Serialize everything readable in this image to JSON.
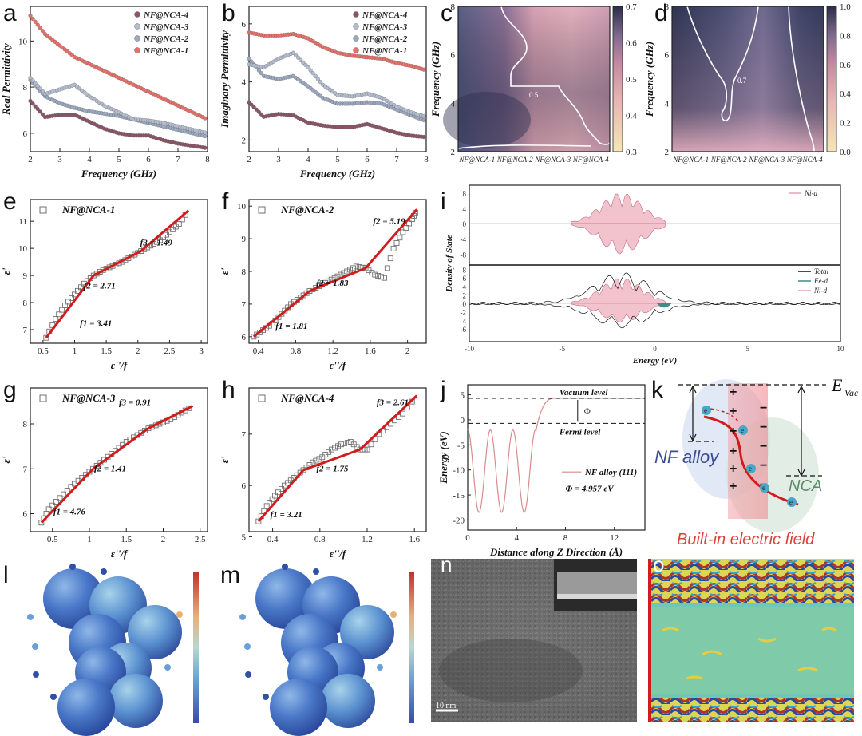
{
  "panel_labels": {
    "a": "a",
    "b": "b",
    "c": "c",
    "d": "d",
    "e": "e",
    "f": "f",
    "g": "g",
    "h": "h",
    "i": "i",
    "j": "j",
    "k": "k",
    "l": "l",
    "m": "m",
    "n": "n",
    "o": "o"
  },
  "colors": {
    "nca1": "#e8706a",
    "nca2": "#9aa8c0",
    "nca3": "#b3bccf",
    "nca4": "#8a5565",
    "fit": "#d01c1c",
    "square": "#707070",
    "cbar_top": "#2c2f4a",
    "cbar_bottom": "#f3e3b5"
  },
  "chart_data": [
    {
      "id": "a",
      "type": "scatter",
      "title": "",
      "xlabel": "Frequency (GHz)",
      "ylabel": "Real Permittivity",
      "xlim": [
        2,
        8
      ],
      "ylim": [
        5.2,
        11.5
      ],
      "xticks": [
        2,
        3,
        4,
        5,
        6,
        7,
        8
      ],
      "yticks": [
        6,
        8,
        10
      ],
      "series": [
        {
          "name": "NF@NCA-1",
          "x": [
            2,
            2.5,
            3,
            3.5,
            4,
            4.5,
            5,
            5.5,
            6,
            6.5,
            7,
            7.5,
            8
          ],
          "y": [
            11.1,
            10.3,
            9.8,
            9.3,
            9.0,
            8.7,
            8.4,
            8.1,
            7.8,
            7.5,
            7.2,
            6.9,
            6.6
          ]
        },
        {
          "name": "NF@NCA-2",
          "x": [
            2,
            2.5,
            3,
            3.5,
            4,
            4.5,
            5,
            5.5,
            6,
            6.5,
            7,
            7.5,
            8
          ],
          "y": [
            8.3,
            7.6,
            7.3,
            7.1,
            6.95,
            6.85,
            6.75,
            6.6,
            6.45,
            6.3,
            6.15,
            6.0,
            5.85
          ]
        },
        {
          "name": "NF@NCA-3",
          "x": [
            2,
            2.5,
            3,
            3.5,
            4,
            4.5,
            5,
            5.5,
            6,
            6.5,
            7,
            7.5,
            8
          ],
          "y": [
            8.4,
            7.7,
            7.9,
            8.1,
            7.6,
            7.2,
            6.9,
            6.6,
            6.55,
            6.45,
            6.3,
            6.15,
            6.0
          ]
        },
        {
          "name": "NF@NCA-4",
          "x": [
            2,
            2.5,
            3,
            3.5,
            4,
            4.5,
            5,
            5.5,
            6,
            6.5,
            7,
            7.5,
            8
          ],
          "y": [
            7.4,
            6.7,
            6.8,
            6.8,
            6.5,
            6.2,
            6.0,
            5.9,
            5.9,
            5.7,
            5.55,
            5.45,
            5.35
          ]
        }
      ]
    },
    {
      "id": "b",
      "type": "scatter",
      "title": "",
      "xlabel": "Frequency (GHz)",
      "ylabel": "Imaginary Permittivity",
      "xlim": [
        2,
        8
      ],
      "ylim": [
        1.6,
        6.6
      ],
      "xticks": [
        2,
        3,
        4,
        5,
        6,
        7,
        8
      ],
      "yticks": [
        2,
        4,
        6
      ],
      "series": [
        {
          "name": "NF@NCA-1",
          "x": [
            2,
            2.5,
            3,
            3.5,
            4,
            4.5,
            5,
            5.5,
            6,
            6.5,
            7,
            7.5,
            8
          ],
          "y": [
            5.7,
            5.6,
            5.6,
            5.65,
            5.5,
            5.2,
            5.0,
            4.9,
            4.85,
            4.8,
            4.65,
            4.55,
            4.4
          ]
        },
        {
          "name": "NF@NCA-2",
          "x": [
            2,
            2.5,
            3,
            3.5,
            4,
            4.5,
            5,
            5.5,
            6,
            6.5,
            7,
            7.5,
            8
          ],
          "y": [
            4.8,
            4.2,
            4.1,
            4.2,
            3.85,
            3.45,
            3.25,
            3.25,
            3.3,
            3.25,
            3.05,
            2.85,
            2.65
          ]
        },
        {
          "name": "NF@NCA-3",
          "x": [
            2,
            2.5,
            3,
            3.5,
            4,
            4.5,
            5,
            5.5,
            6,
            6.5,
            7,
            7.5,
            8
          ],
          "y": [
            4.6,
            4.5,
            4.8,
            5.0,
            4.5,
            3.9,
            3.55,
            3.5,
            3.6,
            3.45,
            3.15,
            2.95,
            2.8
          ]
        },
        {
          "name": "NF@NCA-4",
          "x": [
            2,
            2.5,
            3,
            3.5,
            4,
            4.5,
            5,
            5.5,
            6,
            6.5,
            7,
            7.5,
            8
          ],
          "y": [
            3.3,
            2.8,
            2.9,
            2.85,
            2.6,
            2.5,
            2.45,
            2.45,
            2.55,
            2.4,
            2.25,
            2.15,
            2.1
          ]
        }
      ]
    },
    {
      "id": "c",
      "type": "heatmap",
      "xlabel": "",
      "ylabel": "Frequency (GHz)",
      "categories": [
        "NF@NCA-1",
        "NF@NCA-2",
        "NF@NCA-3",
        "NF@NCA-4"
      ],
      "ylim": [
        2,
        8
      ],
      "yticks": [
        2,
        4,
        6,
        8
      ],
      "colorbar": {
        "min": 0.3,
        "max": 0.7,
        "ticks": [
          0.3,
          0.4,
          0.5,
          0.6,
          0.7
        ]
      },
      "contour_label": "0.5"
    },
    {
      "id": "d",
      "type": "heatmap",
      "xlabel": "",
      "ylabel": "Frequency (GHz)",
      "categories": [
        "NF@NCA-1",
        "NF@NCA-2",
        "NF@NCA-3",
        "NF@NCA-4"
      ],
      "ylim": [
        2,
        8
      ],
      "yticks": [
        2,
        4,
        6,
        8
      ],
      "colorbar": {
        "min": 0.0,
        "max": 1.0,
        "ticks": [
          0.0,
          0.2,
          0.4,
          0.6,
          0.8,
          1.0
        ]
      },
      "contour_label": "0.7"
    },
    {
      "id": "e",
      "type": "scatter",
      "title": "NF@NCA-1",
      "xlabel": "ε''/f",
      "ylabel": "ε'",
      "xlim": [
        0.3,
        3.1
      ],
      "ylim": [
        6.5,
        11.8
      ],
      "xticks": [
        0.5,
        1.0,
        1.5,
        2.0,
        2.5,
        3.0
      ],
      "yticks": [
        7,
        8,
        9,
        10,
        11
      ],
      "fits": [
        "f1 = 3.41",
        "f2 = 2.71",
        "f3 = 1.49"
      ],
      "x": [
        0.55,
        0.7,
        0.85,
        1.0,
        1.15,
        1.3,
        1.45,
        1.6,
        1.75,
        1.9,
        2.05,
        2.2,
        2.35,
        2.5,
        2.65,
        2.8
      ],
      "y": [
        6.7,
        7.4,
        7.9,
        8.3,
        8.7,
        9.0,
        9.2,
        9.35,
        9.5,
        9.7,
        9.9,
        10.1,
        10.3,
        10.6,
        10.9,
        11.4
      ]
    },
    {
      "id": "f",
      "type": "scatter",
      "title": "NF@NCA-2",
      "xlabel": "ε''/f",
      "ylabel": "ε'",
      "xlim": [
        0.3,
        2.2
      ],
      "ylim": [
        5.8,
        10.2
      ],
      "xticks": [
        0.4,
        0.8,
        1.2,
        1.6,
        2.0
      ],
      "yticks": [
        6,
        7,
        8,
        9,
        10
      ],
      "fits": [
        "f1 = 1.81",
        "f2 = 1.83",
        "f2 = 5.19"
      ],
      "x": [
        0.35,
        0.45,
        0.55,
        0.65,
        0.75,
        0.85,
        0.95,
        1.05,
        1.15,
        1.25,
        1.35,
        1.45,
        1.55,
        1.65,
        1.75,
        1.85,
        1.95,
        2.05,
        2.1
      ],
      "y": [
        6.0,
        6.2,
        6.4,
        6.7,
        7.0,
        7.2,
        7.4,
        7.55,
        7.7,
        7.85,
        8.0,
        8.15,
        8.1,
        7.9,
        7.8,
        8.7,
        9.2,
        9.6,
        9.9
      ]
    },
    {
      "id": "g",
      "type": "scatter",
      "title": "NF@NCA-3",
      "xlabel": "ε''/f",
      "ylabel": "ε'",
      "xlim": [
        0.2,
        2.6
      ],
      "ylim": [
        5.6,
        8.8
      ],
      "xticks": [
        0.5,
        1.0,
        1.5,
        2.0,
        2.5
      ],
      "yticks": [
        6,
        7,
        8
      ],
      "fits": [
        "f1 = 4.76",
        "f2 = 1.41",
        "f3 = 0.91"
      ],
      "x": [
        0.35,
        0.45,
        0.6,
        0.75,
        0.9,
        1.05,
        1.2,
        1.35,
        1.5,
        1.65,
        1.8,
        1.95,
        2.1,
        2.25,
        2.4
      ],
      "y": [
        5.8,
        6.1,
        6.35,
        6.6,
        6.8,
        7.0,
        7.2,
        7.4,
        7.6,
        7.75,
        7.9,
        8.0,
        8.1,
        8.25,
        8.4
      ]
    },
    {
      "id": "h",
      "type": "scatter",
      "title": "NF@NCA-4",
      "xlabel": "ε''/f",
      "ylabel": "ε'",
      "xlim": [
        0.2,
        1.7
      ],
      "ylim": [
        5.1,
        7.9
      ],
      "xticks": [
        0.4,
        0.8,
        1.2,
        1.6
      ],
      "yticks": [
        5,
        6,
        7
      ],
      "fits": [
        "f1 = 3.21",
        "f2 = 1.75",
        "f3 = 2.61"
      ],
      "x": [
        0.28,
        0.35,
        0.42,
        0.5,
        0.58,
        0.66,
        0.74,
        0.82,
        0.9,
        0.98,
        1.06,
        1.14,
        1.2,
        1.3,
        1.4,
        1.5,
        1.62
      ],
      "y": [
        5.3,
        5.6,
        5.8,
        6.0,
        6.15,
        6.3,
        6.45,
        6.55,
        6.7,
        6.8,
        6.85,
        6.7,
        6.7,
        7.0,
        7.2,
        7.4,
        7.75
      ]
    },
    {
      "id": "i",
      "type": "line",
      "title": "",
      "xlabel": "Energy (eV)",
      "ylabel": "Density of State",
      "xlim": [
        -10,
        10
      ],
      "xticks": [
        -10,
        -5,
        0,
        5,
        10
      ],
      "top": {
        "yticks": [
          8,
          4,
          0,
          -4,
          -8
        ],
        "legend": [
          "Ni-d"
        ]
      },
      "bottom": {
        "yticks": [
          8,
          6,
          4,
          2,
          0,
          -2,
          -4,
          -6
        ],
        "legend": [
          "Total",
          "Fe-d",
          "Ni-d"
        ]
      }
    },
    {
      "id": "j",
      "type": "line",
      "xlabel": "Distance along Z Direction (Å)",
      "ylabel": "Energy (eV)",
      "xlim": [
        0,
        14.5
      ],
      "ylim": [
        -22,
        7
      ],
      "xticks": [
        0,
        4,
        8,
        12
      ],
      "yticks": [
        5,
        0,
        -5,
        -10,
        -15,
        -20
      ],
      "vacuum_level": 4.3,
      "fermi_level": -0.7,
      "labels": {
        "vacuum": "Vacuum level",
        "fermi": "Fermi level",
        "phi_symbol": "Φ",
        "legend": "NF alloy (111)",
        "phi_value": "Φ = 4.957 eV"
      }
    }
  ],
  "diagram_k": {
    "evac": "E",
    "evac_sub": "Vac",
    "nf": "NF alloy",
    "nca": "NCA",
    "caption": "Built-in electric field",
    "electron": "e"
  },
  "image_n": {
    "scale_bar": "10 nm"
  }
}
